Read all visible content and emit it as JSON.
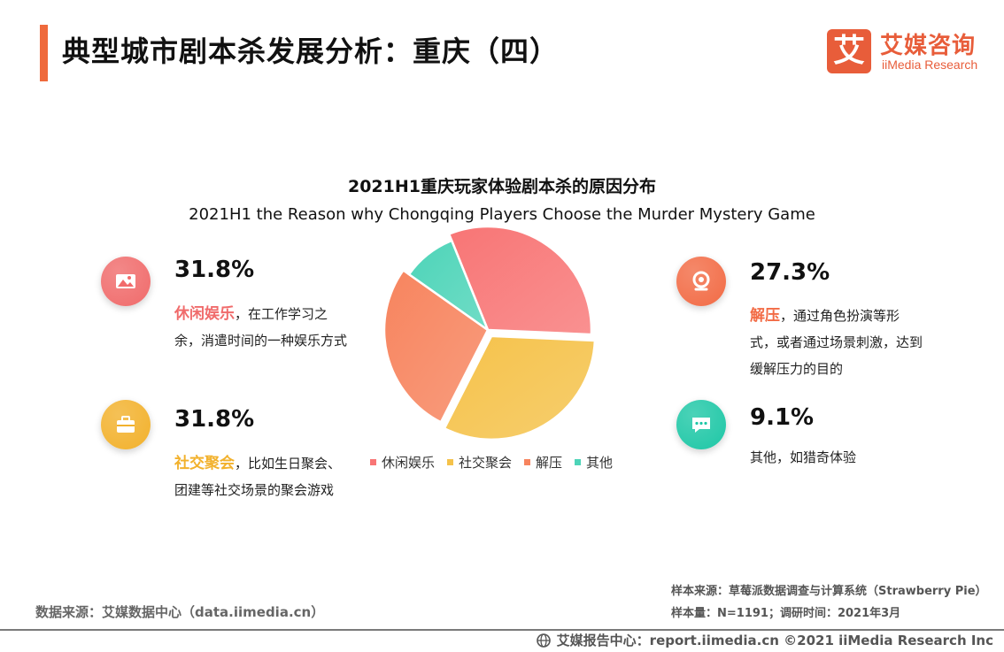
{
  "header": {
    "title": "典型城市剧本杀发展分析：重庆（四）",
    "logo_mark": "艾",
    "logo_cn": "艾媒咨询",
    "logo_en": "iiMedia Research"
  },
  "chart_data": {
    "type": "pie",
    "title": "2021H1重庆玩家体验剧本杀的原因分布",
    "subtitle": "2021H1 the Reason why Chongqing Players Choose the Murder Mystery Game",
    "categories": [
      "休闲娱乐",
      "社交聚会",
      "解压",
      "其他"
    ],
    "values": [
      31.8,
      31.8,
      27.3,
      9.1
    ],
    "unit": "%",
    "colors": [
      "#f87575",
      "#f5c24a",
      "#f7845e",
      "#4dd4b8"
    ],
    "legend": "bottom"
  },
  "callouts": [
    {
      "pct": "31.8%",
      "highlight": "休闲娱乐",
      "text": "，在工作学习之余，消遣时间的一种娱乐方式",
      "color": "#f06b6b",
      "icon": "picture-icon"
    },
    {
      "pct": "31.8%",
      "highlight": "社交聚会",
      "text": "，比如生日聚会、团建等社交场景的聚会游戏",
      "color": "#f2b12c",
      "icon": "briefcase-icon"
    },
    {
      "pct": "27.3%",
      "highlight": "解压",
      "text": "，通过角色扮演等形式，或者通过场景刺激，达到缓解压力的目的",
      "color": "#f26b45",
      "icon": "location-icon"
    },
    {
      "pct": "9.1%",
      "highlight": "",
      "text": "其他，如猎奇体验",
      "color": "#1ec7a6",
      "icon": "chat-icon"
    }
  ],
  "footer": {
    "source_left": "数据来源：艾媒数据中心（data.iimedia.cn）",
    "sample_source": "样本来源：草莓派数据调查与计算系统（Strawberry Pie）",
    "sample_size": "样本量：N=1191；调研时间：2021年3月",
    "copyright": "艾媒报告中心：report.iimedia.cn  ©2021  iiMedia Research  Inc"
  }
}
